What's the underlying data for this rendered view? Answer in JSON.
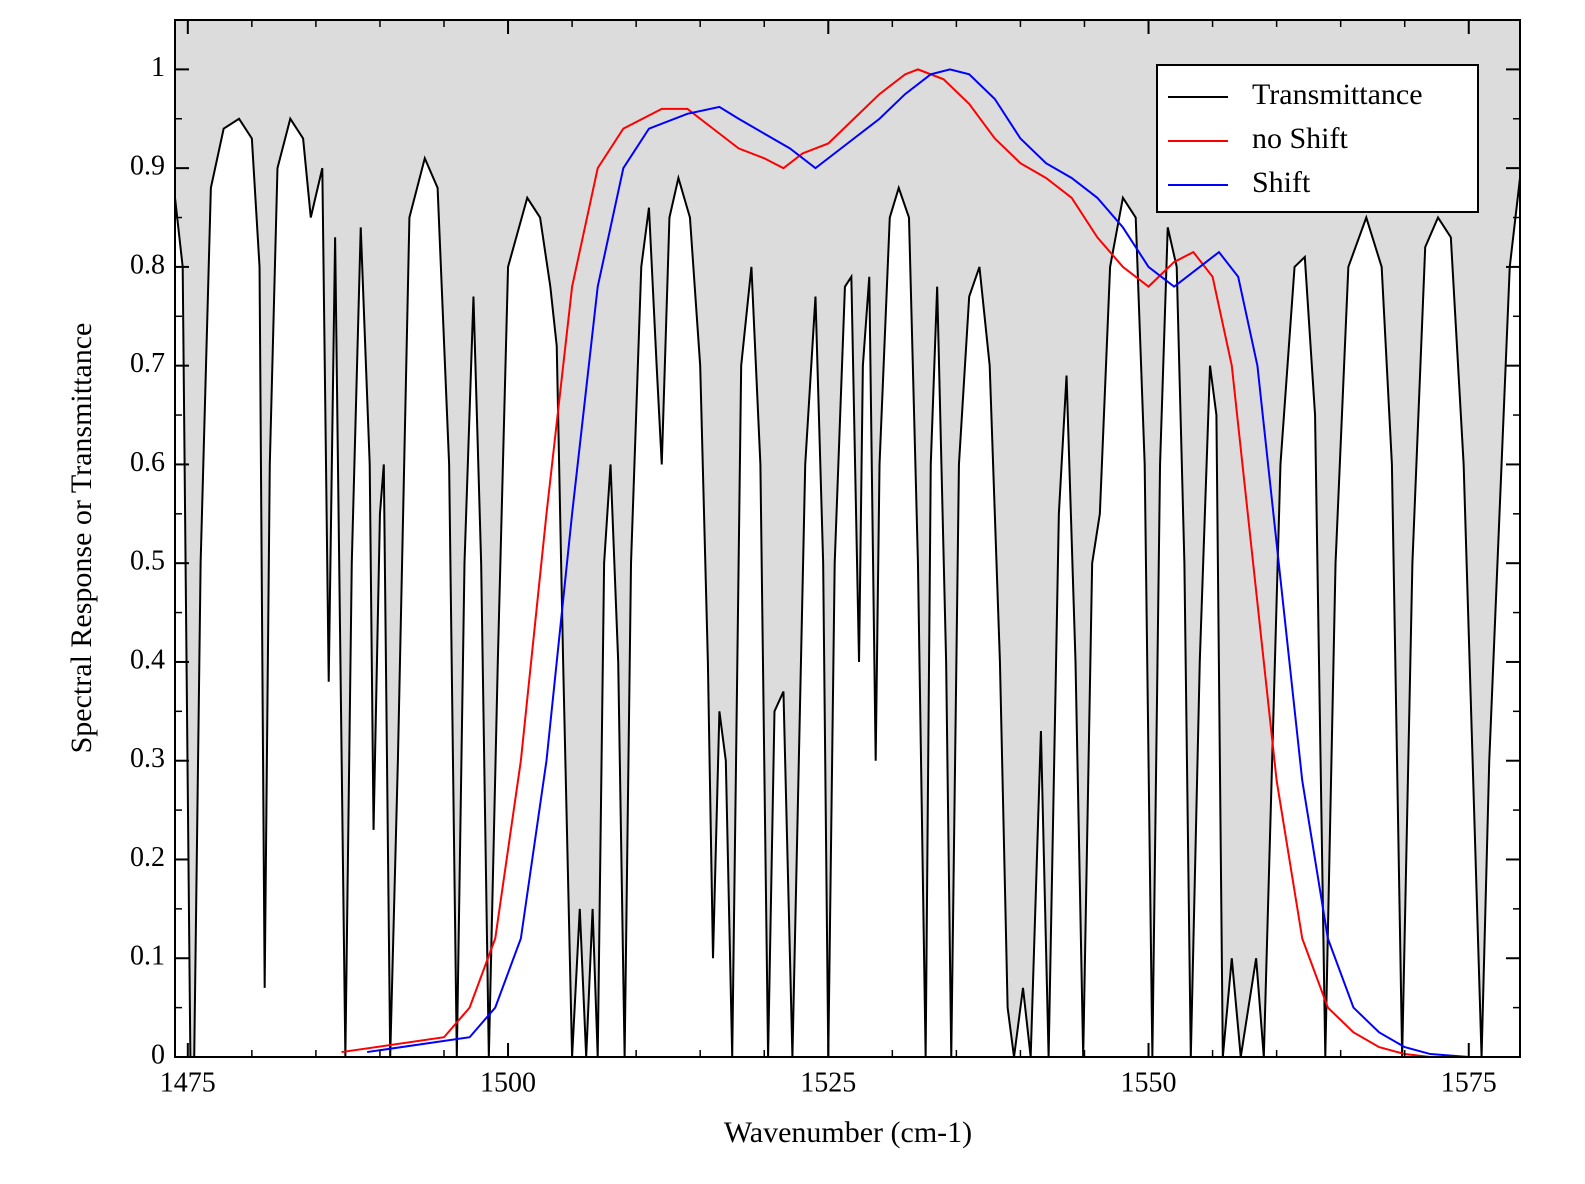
{
  "chart_data": {
    "type": "line",
    "xlabel": "Wavenumber (cm-1)",
    "ylabel": "Spectral Response or Transmittance",
    "xlim": [
      1474,
      1579
    ],
    "ylim": [
      0,
      1.05
    ],
    "xticks": [
      1475,
      1500,
      1525,
      1550,
      1575
    ],
    "yticks": [
      0,
      0.1,
      0.2,
      0.3,
      0.4,
      0.5,
      0.6,
      0.7,
      0.8,
      0.9,
      1
    ],
    "legend": "upper right",
    "background": "#dcdcdc",
    "series": [
      {
        "name": "Transmittance",
        "color": "#000000",
        "fill_below": "#ffffff",
        "x": [
          1474,
          1474.6,
          1475.2,
          1475.5,
          1476,
          1476.8,
          1477.8,
          1479,
          1480,
          1480.6,
          1481,
          1481.4,
          1482,
          1483,
          1484,
          1484.6,
          1485.5,
          1486,
          1486.5,
          1487.3,
          1487.8,
          1488.5,
          1489.2,
          1489.5,
          1490,
          1490.3,
          1490.8,
          1491.4,
          1492.3,
          1493.5,
          1494.5,
          1495.4,
          1496,
          1496.6,
          1497.3,
          1497.9,
          1498.5,
          1499.2,
          1500,
          1501.5,
          1502.5,
          1503.3,
          1503.8,
          1504.3,
          1505,
          1505.6,
          1506.1,
          1506.6,
          1507,
          1507.5,
          1508,
          1508.6,
          1509.1,
          1509.6,
          1510.4,
          1511,
          1511.6,
          1512,
          1512.6,
          1513.3,
          1514.2,
          1515,
          1515.6,
          1516,
          1516.5,
          1517,
          1517.5,
          1518.2,
          1519,
          1519.7,
          1520.3,
          1520.8,
          1521.5,
          1522.2,
          1523.2,
          1524,
          1524.6,
          1525,
          1525.5,
          1526.3,
          1526.8,
          1527.4,
          1527.7,
          1528.2,
          1528.7,
          1529,
          1529.8,
          1530.5,
          1531.3,
          1532,
          1532.6,
          1533,
          1533.5,
          1534.2,
          1534.6,
          1535.2,
          1536,
          1536.8,
          1537.6,
          1538.4,
          1539,
          1539.5,
          1540.2,
          1540.8,
          1541.6,
          1542.2,
          1543,
          1543.6,
          1544.3,
          1544.9,
          1545.6,
          1546.2,
          1547,
          1548,
          1549,
          1549.7,
          1550.3,
          1550.9,
          1551.5,
          1552.2,
          1552.8,
          1553.3,
          1554,
          1554.8,
          1555.3,
          1555.8,
          1556.5,
          1557.2,
          1558.4,
          1559,
          1560.3,
          1561.4,
          1562.2,
          1563,
          1563.8,
          1564.6,
          1565.6,
          1567,
          1568.2,
          1569,
          1569.8,
          1570.6,
          1571.6,
          1572.6,
          1573.6,
          1574.6,
          1575.3,
          1576,
          1576.6,
          1577.4,
          1578.2,
          1579
        ],
        "values": [
          0.87,
          0.8,
          0,
          0,
          0.5,
          0.88,
          0.94,
          0.95,
          0.93,
          0.8,
          0.07,
          0.6,
          0.9,
          0.95,
          0.93,
          0.85,
          0.9,
          0.38,
          0.83,
          0,
          0.5,
          0.84,
          0.6,
          0.23,
          0.55,
          0.6,
          0,
          0.3,
          0.85,
          0.91,
          0.88,
          0.6,
          0,
          0.5,
          0.77,
          0.5,
          0,
          0.4,
          0.8,
          0.87,
          0.85,
          0.78,
          0.72,
          0.4,
          0,
          0.15,
          0,
          0.15,
          0,
          0.5,
          0.6,
          0.4,
          0,
          0.5,
          0.8,
          0.86,
          0.7,
          0.6,
          0.85,
          0.89,
          0.85,
          0.7,
          0.4,
          0.1,
          0.35,
          0.3,
          0,
          0.7,
          0.8,
          0.6,
          0,
          0.35,
          0.37,
          0,
          0.6,
          0.77,
          0.5,
          0,
          0.5,
          0.78,
          0.79,
          0.4,
          0.7,
          0.79,
          0.3,
          0.6,
          0.85,
          0.88,
          0.85,
          0.5,
          0,
          0.6,
          0.78,
          0.4,
          0,
          0.6,
          0.77,
          0.8,
          0.7,
          0.4,
          0.05,
          0,
          0.07,
          0,
          0.33,
          0,
          0.55,
          0.69,
          0.4,
          0,
          0.5,
          0.55,
          0.8,
          0.87,
          0.85,
          0.6,
          0,
          0.6,
          0.84,
          0.8,
          0.5,
          0,
          0.4,
          0.7,
          0.65,
          0,
          0.1,
          0,
          0.1,
          0,
          0.6,
          0.8,
          0.81,
          0.65,
          0,
          0.5,
          0.8,
          0.85,
          0.8,
          0.6,
          0,
          0.5,
          0.82,
          0.85,
          0.83,
          0.6,
          0.3,
          0,
          0.3,
          0.55,
          0.8,
          0.89
        ]
      },
      {
        "name": "no Shift",
        "color": "#ff0000",
        "x": [
          1487,
          1495,
          1497,
          1499,
          1501,
          1503,
          1505,
          1507,
          1509,
          1512,
          1514,
          1516,
          1518,
          1520,
          1521.5,
          1523,
          1525,
          1527,
          1529,
          1531,
          1532,
          1534,
          1536,
          1538,
          1540,
          1542,
          1544,
          1546,
          1548,
          1550,
          1552,
          1553.5,
          1555,
          1556.5,
          1558,
          1560,
          1562,
          1564,
          1566,
          1568,
          1570,
          1572
        ],
        "values": [
          0.005,
          0.02,
          0.05,
          0.12,
          0.3,
          0.55,
          0.78,
          0.9,
          0.94,
          0.96,
          0.96,
          0.94,
          0.92,
          0.91,
          0.9,
          0.915,
          0.925,
          0.95,
          0.975,
          0.995,
          1.0,
          0.99,
          0.965,
          0.93,
          0.905,
          0.89,
          0.87,
          0.83,
          0.8,
          0.78,
          0.805,
          0.815,
          0.79,
          0.7,
          0.52,
          0.28,
          0.12,
          0.05,
          0.025,
          0.01,
          0.003,
          0
        ]
      },
      {
        "name": "Shift",
        "color": "#0000ff",
        "x": [
          1489,
          1497,
          1499,
          1501,
          1503,
          1505,
          1507,
          1509,
          1511,
          1514,
          1516.5,
          1518,
          1520,
          1522,
          1524,
          1525,
          1527,
          1529,
          1531,
          1533,
          1534.5,
          1536,
          1538,
          1540,
          1542,
          1544,
          1546,
          1548,
          1550,
          1552,
          1554,
          1555.5,
          1557,
          1558.5,
          1560,
          1562,
          1564,
          1566,
          1568,
          1570,
          1572,
          1575
        ],
        "values": [
          0.005,
          0.02,
          0.05,
          0.12,
          0.3,
          0.55,
          0.78,
          0.9,
          0.94,
          0.955,
          0.962,
          0.95,
          0.935,
          0.92,
          0.9,
          0.91,
          0.93,
          0.95,
          0.975,
          0.995,
          1.0,
          0.995,
          0.97,
          0.93,
          0.905,
          0.89,
          0.87,
          0.84,
          0.8,
          0.78,
          0.8,
          0.815,
          0.79,
          0.7,
          0.52,
          0.28,
          0.12,
          0.05,
          0.025,
          0.01,
          0.003,
          0
        ]
      }
    ]
  }
}
